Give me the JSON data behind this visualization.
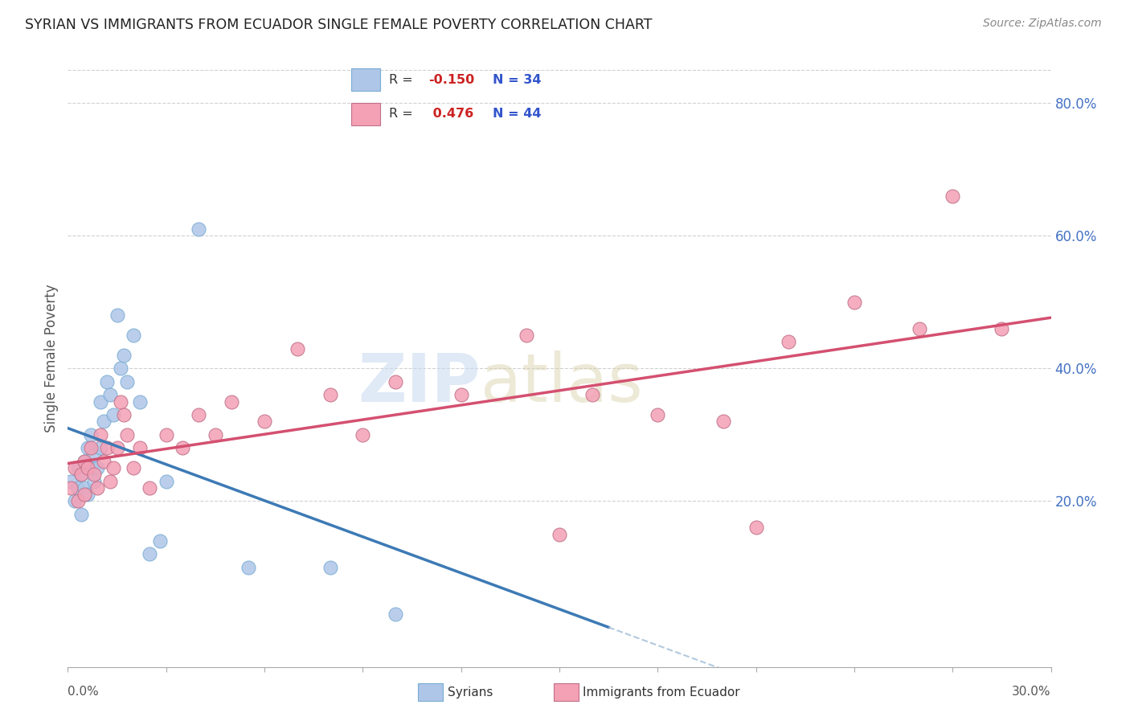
{
  "title": "SYRIAN VS IMMIGRANTS FROM ECUADOR SINGLE FEMALE POVERTY CORRELATION CHART",
  "source": "Source: ZipAtlas.com",
  "ylabel": "Single Female Poverty",
  "right_yticks": [
    "80.0%",
    "60.0%",
    "40.0%",
    "20.0%"
  ],
  "right_ytick_values": [
    0.8,
    0.6,
    0.4,
    0.2
  ],
  "xlim": [
    0.0,
    0.3
  ],
  "ylim": [
    -0.05,
    0.88
  ],
  "legend_syrian_R": "-0.150",
  "legend_syrian_N": "34",
  "legend_ecuador_R": "0.476",
  "legend_ecuador_N": "44",
  "syrian_color": "#aec6e8",
  "ecuador_color": "#f4a0b5",
  "syrian_line_color": "#3d7ab5",
  "syrian_line_dash_color": "#a0bcd8",
  "ecuador_line_color": "#d45070",
  "background_color": "#ffffff",
  "grid_color": "#cccccc",
  "syrian_points_x": [
    0.001,
    0.002,
    0.003,
    0.003,
    0.004,
    0.004,
    0.005,
    0.005,
    0.006,
    0.006,
    0.007,
    0.007,
    0.008,
    0.008,
    0.009,
    0.01,
    0.01,
    0.011,
    0.012,
    0.013,
    0.014,
    0.015,
    0.016,
    0.017,
    0.018,
    0.02,
    0.022,
    0.025,
    0.028,
    0.03,
    0.04,
    0.055,
    0.08,
    0.1
  ],
  "syrian_points_y": [
    0.23,
    0.2,
    0.22,
    0.25,
    0.18,
    0.24,
    0.22,
    0.26,
    0.21,
    0.28,
    0.25,
    0.3,
    0.27,
    0.23,
    0.25,
    0.35,
    0.28,
    0.32,
    0.38,
    0.36,
    0.33,
    0.48,
    0.4,
    0.42,
    0.38,
    0.45,
    0.35,
    0.12,
    0.14,
    0.23,
    0.61,
    0.1,
    0.1,
    0.03
  ],
  "ecuador_points_x": [
    0.001,
    0.002,
    0.003,
    0.004,
    0.005,
    0.005,
    0.006,
    0.007,
    0.008,
    0.009,
    0.01,
    0.011,
    0.012,
    0.013,
    0.014,
    0.015,
    0.016,
    0.017,
    0.018,
    0.02,
    0.022,
    0.025,
    0.03,
    0.035,
    0.04,
    0.045,
    0.05,
    0.06,
    0.07,
    0.08,
    0.09,
    0.1,
    0.12,
    0.14,
    0.15,
    0.16,
    0.18,
    0.2,
    0.21,
    0.22,
    0.24,
    0.26,
    0.27,
    0.285
  ],
  "ecuador_points_y": [
    0.22,
    0.25,
    0.2,
    0.24,
    0.21,
    0.26,
    0.25,
    0.28,
    0.24,
    0.22,
    0.3,
    0.26,
    0.28,
    0.23,
    0.25,
    0.28,
    0.35,
    0.33,
    0.3,
    0.25,
    0.28,
    0.22,
    0.3,
    0.28,
    0.33,
    0.3,
    0.35,
    0.32,
    0.43,
    0.36,
    0.3,
    0.38,
    0.36,
    0.45,
    0.15,
    0.36,
    0.33,
    0.32,
    0.16,
    0.44,
    0.5,
    0.46,
    0.66,
    0.46
  ]
}
